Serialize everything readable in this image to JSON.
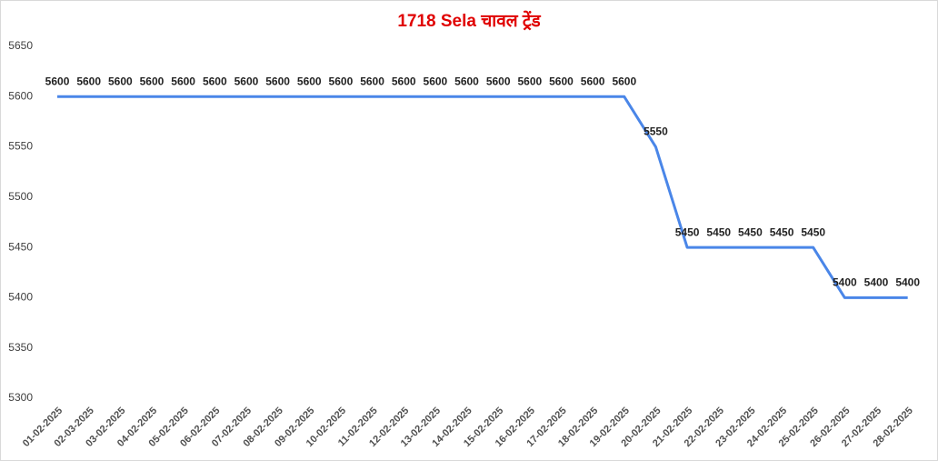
{
  "chart_data": {
    "type": "line",
    "title": "1718 Sela चावल ट्रेंड",
    "categories": [
      "01-02-2025",
      "02-03-2025",
      "03-02-2025",
      "04-02-2025",
      "05-02-2025",
      "06-02-2025",
      "07-02-2025",
      "08-02-2025",
      "09-02-2025",
      "10-02-2025",
      "11-02-2025",
      "12-02-2025",
      "13-02-2025",
      "14-02-2025",
      "15-02-2025",
      "16-02-2025",
      "17-02-2025",
      "18-02-2025",
      "19-02-2025",
      "20-02-2025",
      "21-02-2025",
      "22-02-2025",
      "23-02-2025",
      "24-02-2025",
      "25-02-2025",
      "26-02-2025",
      "27-02-2025",
      "28-02-2025"
    ],
    "values": [
      5600,
      5600,
      5600,
      5600,
      5600,
      5600,
      5600,
      5600,
      5600,
      5600,
      5600,
      5600,
      5600,
      5600,
      5600,
      5600,
      5600,
      5600,
      5600,
      5550,
      5450,
      5450,
      5450,
      5450,
      5450,
      5400,
      5400,
      5400
    ],
    "color": "#4a86e8",
    "ylim": [
      5300,
      5650
    ],
    "yticks": [
      5300,
      5350,
      5400,
      5450,
      5500,
      5550,
      5600,
      5650
    ],
    "grid": false
  }
}
